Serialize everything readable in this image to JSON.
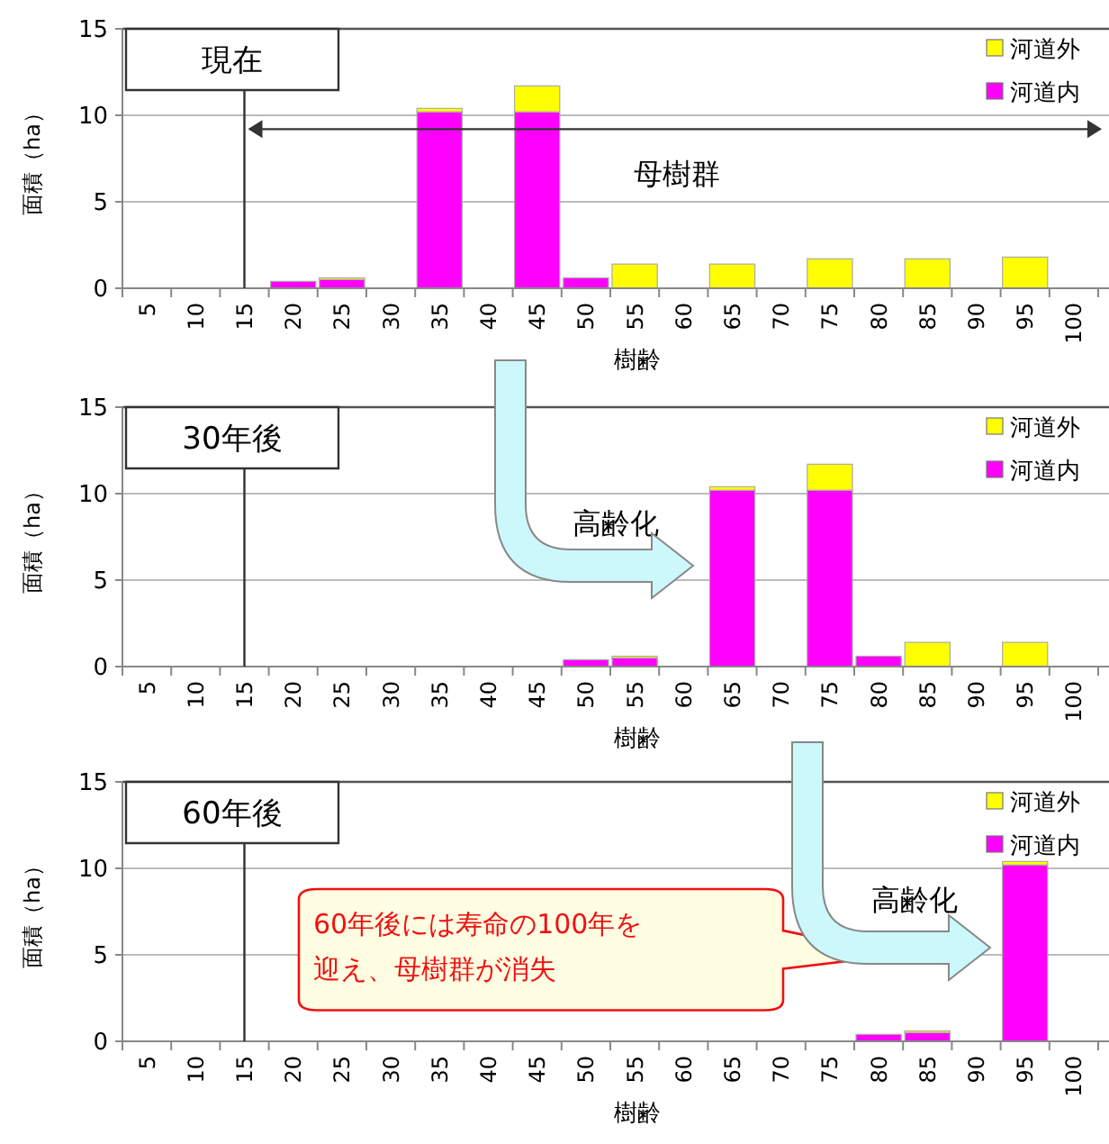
{
  "chart_data": [
    {
      "type": "bar",
      "stacked": true,
      "xlabel": "樹齢",
      "ylabel": "面積（ha）",
      "categories": [
        "5",
        "10",
        "15",
        "20",
        "25",
        "30",
        "35",
        "40",
        "45",
        "50",
        "55",
        "60",
        "65",
        "70",
        "75",
        "80",
        "85",
        "90",
        "95",
        "100"
      ],
      "series": [
        {
          "name": "河道内",
          "color": "#ff00ff",
          "values": [
            0,
            0,
            0,
            0.4,
            0.5,
            0,
            10.2,
            0,
            10.2,
            0.6,
            0,
            0,
            0,
            0,
            0,
            0,
            0,
            0,
            0,
            0
          ]
        },
        {
          "name": "河道外",
          "color": "#ffff00",
          "values": [
            0,
            0,
            0,
            0,
            0.1,
            0,
            0.2,
            0,
            1.5,
            0,
            1.4,
            0,
            1.4,
            0,
            1.7,
            0,
            1.7,
            0,
            1.8,
            0
          ]
        }
      ],
      "ylim": [
        0,
        15
      ],
      "yticks": [
        0,
        5,
        10,
        15
      ],
      "grid": "y",
      "legend": "top right",
      "annotations": [
        "現在",
        "母樹群"
      ]
    },
    {
      "type": "bar",
      "stacked": true,
      "xlabel": "樹齢",
      "ylabel": "面積（ha）",
      "categories": [
        "5",
        "10",
        "15",
        "20",
        "25",
        "30",
        "35",
        "40",
        "45",
        "50",
        "55",
        "60",
        "65",
        "70",
        "75",
        "80",
        "85",
        "90",
        "95",
        "100"
      ],
      "series": [
        {
          "name": "河道内",
          "color": "#ff00ff",
          "values": [
            0,
            0,
            0,
            0,
            0,
            0,
            0,
            0,
            0,
            0.4,
            0.5,
            0,
            10.2,
            0,
            10.2,
            0.6,
            0,
            0,
            0,
            0
          ]
        },
        {
          "name": "河道外",
          "color": "#ffff00",
          "values": [
            0,
            0,
            0,
            0,
            0,
            0,
            0,
            0,
            0,
            0,
            0.1,
            0,
            0.2,
            0,
            1.5,
            0,
            1.4,
            0,
            1.4,
            0
          ]
        }
      ],
      "ylim": [
        0,
        15
      ],
      "yticks": [
        0,
        5,
        10,
        15
      ],
      "grid": "y",
      "legend": "top right",
      "annotations": [
        "30年後",
        "高齢化"
      ]
    },
    {
      "type": "bar",
      "stacked": true,
      "xlabel": "樹齢",
      "ylabel": "面積（ha）",
      "categories": [
        "5",
        "10",
        "15",
        "20",
        "25",
        "30",
        "35",
        "40",
        "45",
        "50",
        "55",
        "60",
        "65",
        "70",
        "75",
        "80",
        "85",
        "90",
        "95",
        "100"
      ],
      "series": [
        {
          "name": "河道内",
          "color": "#ff00ff",
          "values": [
            0,
            0,
            0,
            0,
            0,
            0,
            0,
            0,
            0,
            0,
            0,
            0,
            0,
            0,
            0,
            0.4,
            0.5,
            0,
            10.2,
            0
          ]
        },
        {
          "name": "河道外",
          "color": "#ffff00",
          "values": [
            0,
            0,
            0,
            0,
            0,
            0,
            0,
            0,
            0,
            0,
            0,
            0,
            0,
            0,
            0,
            0,
            0.1,
            0,
            0.2,
            0
          ]
        }
      ],
      "ylim": [
        0,
        15
      ],
      "yticks": [
        0,
        5,
        10,
        15
      ],
      "grid": "y",
      "legend": "top right",
      "annotations": [
        "60年後",
        "高齢化",
        "60年後には寿命の100年を迎え、母樹群が消失"
      ]
    }
  ]
}
